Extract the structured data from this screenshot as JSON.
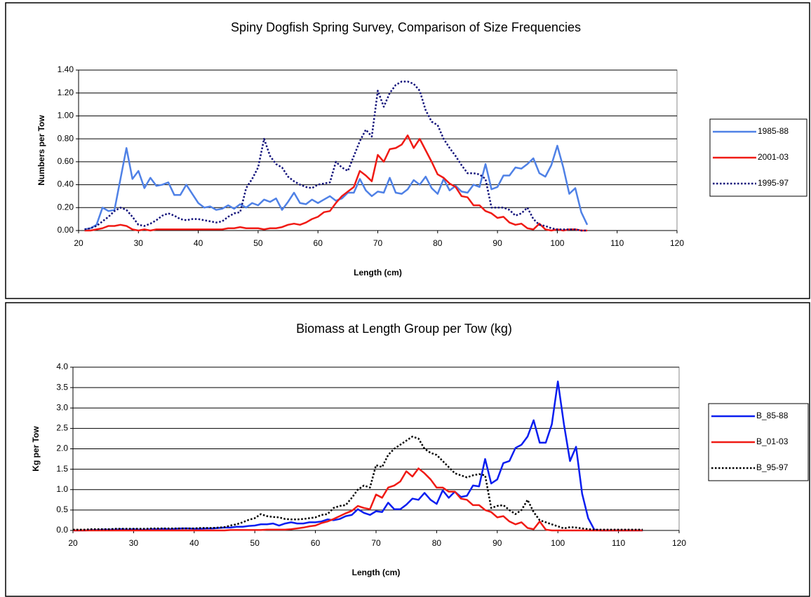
{
  "chart_data": [
    {
      "type": "line",
      "title": "Spiny Dogfish Spring Survey, Comparison of Size Frequencies",
      "xlabel": "Length (cm)",
      "ylabel": "Numbers per Tow",
      "x": [
        21,
        22,
        23,
        24,
        25,
        26,
        27,
        28,
        29,
        30,
        31,
        32,
        33,
        34,
        35,
        36,
        37,
        38,
        39,
        40,
        41,
        42,
        43,
        44,
        45,
        46,
        47,
        48,
        49,
        50,
        51,
        52,
        53,
        54,
        55,
        56,
        57,
        58,
        59,
        60,
        61,
        62,
        63,
        64,
        65,
        66,
        67,
        68,
        69,
        70,
        71,
        72,
        73,
        74,
        75,
        76,
        77,
        78,
        79,
        80,
        81,
        82,
        83,
        84,
        85,
        86,
        87,
        88,
        89,
        90,
        91,
        92,
        93,
        94,
        95,
        96,
        97,
        98,
        99,
        100,
        101,
        102,
        103,
        104,
        105
      ],
      "series": [
        {
          "name": "1985-88",
          "color": "#4f81e6",
          "style": "solid",
          "values": [
            0.01,
            0.02,
            0.05,
            0.2,
            0.17,
            0.18,
            0.45,
            0.72,
            0.45,
            0.52,
            0.37,
            0.46,
            0.39,
            0.4,
            0.42,
            0.31,
            0.31,
            0.4,
            0.32,
            0.24,
            0.2,
            0.21,
            0.18,
            0.19,
            0.22,
            0.19,
            0.23,
            0.2,
            0.24,
            0.22,
            0.27,
            0.25,
            0.28,
            0.18,
            0.25,
            0.33,
            0.24,
            0.23,
            0.27,
            0.24,
            0.27,
            0.3,
            0.26,
            0.28,
            0.33,
            0.33,
            0.45,
            0.35,
            0.3,
            0.34,
            0.33,
            0.46,
            0.33,
            0.32,
            0.36,
            0.44,
            0.4,
            0.47,
            0.37,
            0.32,
            0.45,
            0.35,
            0.39,
            0.34,
            0.33,
            0.4,
            0.38,
            0.58,
            0.36,
            0.38,
            0.48,
            0.48,
            0.55,
            0.54,
            0.58,
            0.63,
            0.5,
            0.47,
            0.57,
            0.74,
            0.55,
            0.32,
            0.37,
            0.16,
            0.05
          ]
        },
        {
          "name": "2001-03",
          "color": "#f01a14",
          "style": "solid",
          "values": [
            0,
            0,
            0.01,
            0.02,
            0.04,
            0.04,
            0.05,
            0.04,
            0.01,
            0,
            0.01,
            0,
            0.01,
            0.01,
            0.01,
            0.01,
            0.01,
            0.01,
            0.01,
            0.01,
            0.01,
            0.01,
            0.01,
            0.01,
            0.02,
            0.02,
            0.03,
            0.02,
            0.02,
            0.02,
            0.01,
            0.02,
            0.02,
            0.03,
            0.05,
            0.06,
            0.05,
            0.07,
            0.1,
            0.12,
            0.16,
            0.17,
            0.24,
            0.3,
            0.34,
            0.38,
            0.52,
            0.48,
            0.43,
            0.66,
            0.6,
            0.71,
            0.72,
            0.75,
            0.83,
            0.72,
            0.8,
            0.7,
            0.6,
            0.49,
            0.46,
            0.41,
            0.38,
            0.3,
            0.29,
            0.22,
            0.22,
            0.17,
            0.15,
            0.11,
            0.12,
            0.07,
            0.05,
            0.06,
            0.02,
            0.01,
            0.06,
            0.01,
            0,
            0.01,
            0,
            0.01,
            0.01,
            0,
            0
          ]
        },
        {
          "name": "1995-97",
          "color": "#10107a",
          "style": "dotted",
          "values": [
            0.01,
            0.02,
            0.04,
            0.08,
            0.12,
            0.17,
            0.2,
            0.18,
            0.12,
            0.05,
            0.04,
            0.06,
            0.09,
            0.13,
            0.15,
            0.13,
            0.1,
            0.09,
            0.1,
            0.1,
            0.09,
            0.08,
            0.07,
            0.08,
            0.12,
            0.15,
            0.16,
            0.37,
            0.45,
            0.55,
            0.8,
            0.65,
            0.58,
            0.55,
            0.47,
            0.43,
            0.4,
            0.38,
            0.37,
            0.4,
            0.41,
            0.42,
            0.6,
            0.55,
            0.52,
            0.65,
            0.78,
            0.88,
            0.82,
            1.22,
            1.08,
            1.2,
            1.27,
            1.3,
            1.3,
            1.28,
            1.22,
            1.05,
            0.95,
            0.92,
            0.8,
            0.72,
            0.65,
            0.57,
            0.5,
            0.5,
            0.49,
            0.45,
            0.2,
            0.2,
            0.2,
            0.18,
            0.13,
            0.15,
            0.2,
            0.1,
            0.05,
            0.04,
            0.02,
            0.01,
            0.01,
            0.01,
            0.01,
            0,
            0
          ]
        }
      ],
      "xlim": [
        20,
        120
      ],
      "xticks": [
        20,
        30,
        40,
        50,
        60,
        70,
        80,
        90,
        100,
        110,
        120
      ],
      "ylim": [
        0,
        1.4
      ],
      "yticks": [
        {
          "value": 0,
          "label": "0.00"
        },
        {
          "value": 0.2,
          "label": "0.20"
        },
        {
          "value": 0.4,
          "label": "0.40"
        },
        {
          "value": 0.6,
          "label": "0.60"
        },
        {
          "value": 0.8,
          "label": "0.80"
        },
        {
          "value": 1,
          "label": "1.00"
        },
        {
          "value": 1.2,
          "label": "1.20"
        },
        {
          "value": 1.4,
          "label": "1.40"
        }
      ],
      "grid": true,
      "legend": "right"
    },
    {
      "type": "line",
      "title": "Biomass at Length Group per Tow (kg)",
      "xlabel": "Length (cm)",
      "ylabel": "Kg per Tow",
      "x": [
        20,
        21,
        22,
        23,
        24,
        25,
        26,
        27,
        28,
        29,
        30,
        31,
        32,
        33,
        34,
        35,
        36,
        37,
        38,
        39,
        40,
        41,
        42,
        43,
        44,
        45,
        46,
        47,
        48,
        49,
        50,
        51,
        52,
        53,
        54,
        55,
        56,
        57,
        58,
        59,
        60,
        61,
        62,
        63,
        64,
        65,
        66,
        67,
        68,
        69,
        70,
        71,
        72,
        73,
        74,
        75,
        76,
        77,
        78,
        79,
        80,
        81,
        82,
        83,
        84,
        85,
        86,
        87,
        88,
        89,
        90,
        91,
        92,
        93,
        94,
        95,
        96,
        97,
        98,
        99,
        100,
        101,
        102,
        103,
        104,
        105,
        106,
        107,
        108,
        109,
        110,
        111,
        112,
        113,
        114
      ],
      "series": [
        {
          "name": "B_85-88",
          "color": "#0a1ef0",
          "style": "solid",
          "values": [
            0,
            0,
            0,
            0.01,
            0.01,
            0.02,
            0.02,
            0.02,
            0.03,
            0.02,
            0.03,
            0.02,
            0.02,
            0.03,
            0.03,
            0.04,
            0.03,
            0.04,
            0.05,
            0.05,
            0.04,
            0.04,
            0.05,
            0.05,
            0.06,
            0.07,
            0.07,
            0.09,
            0.09,
            0.11,
            0.12,
            0.15,
            0.15,
            0.17,
            0.12,
            0.17,
            0.2,
            0.17,
            0.17,
            0.2,
            0.2,
            0.22,
            0.27,
            0.25,
            0.28,
            0.35,
            0.38,
            0.52,
            0.43,
            0.38,
            0.47,
            0.45,
            0.68,
            0.52,
            0.52,
            0.63,
            0.78,
            0.75,
            0.92,
            0.75,
            0.65,
            0.98,
            0.8,
            0.95,
            0.82,
            0.85,
            1.1,
            1.08,
            1.75,
            1.15,
            1.25,
            1.65,
            1.7,
            2.02,
            2.1,
            2.3,
            2.7,
            2.15,
            2.15,
            2.6,
            3.65,
            2.6,
            1.7,
            2.05,
            0.9,
            0.3,
            0.02,
            0,
            0,
            0,
            0,
            0,
            0,
            0,
            0
          ]
        },
        {
          "name": "B_01-03",
          "color": "#f01a14",
          "style": "solid",
          "values": [
            0,
            0,
            0,
            0,
            0,
            0,
            0,
            0,
            0,
            0,
            0,
            0,
            0,
            0,
            0,
            0,
            0,
            0,
            0,
            0,
            0,
            0,
            0,
            0,
            0,
            0,
            0.01,
            0.01,
            0.01,
            0.01,
            0.01,
            0.01,
            0.02,
            0.02,
            0.02,
            0.02,
            0.03,
            0.05,
            0.07,
            0.1,
            0.12,
            0.18,
            0.22,
            0.28,
            0.35,
            0.42,
            0.48,
            0.6,
            0.55,
            0.52,
            0.88,
            0.8,
            1.05,
            1.1,
            1.2,
            1.45,
            1.32,
            1.52,
            1.4,
            1.25,
            1.05,
            1.05,
            0.95,
            0.95,
            0.78,
            0.75,
            0.62,
            0.62,
            0.5,
            0.45,
            0.32,
            0.35,
            0.22,
            0.15,
            0.2,
            0.06,
            0.03,
            0.22,
            0.02,
            0,
            0,
            0,
            0,
            0,
            0,
            0,
            0,
            0,
            0,
            0,
            0,
            0,
            0,
            0,
            0
          ]
        },
        {
          "name": "B_95-97",
          "color": "#000000",
          "style": "dotted",
          "values": [
            0.02,
            0.02,
            0.02,
            0.03,
            0.03,
            0.03,
            0.03,
            0.04,
            0.04,
            0.04,
            0.04,
            0.04,
            0.04,
            0.05,
            0.05,
            0.05,
            0.05,
            0.05,
            0.05,
            0.05,
            0.05,
            0.06,
            0.06,
            0.06,
            0.07,
            0.08,
            0.12,
            0.15,
            0.2,
            0.26,
            0.3,
            0.4,
            0.35,
            0.33,
            0.32,
            0.28,
            0.27,
            0.27,
            0.28,
            0.3,
            0.32,
            0.38,
            0.4,
            0.55,
            0.6,
            0.62,
            0.8,
            1.0,
            1.1,
            1.05,
            1.6,
            1.55,
            1.85,
            2.0,
            2.1,
            2.2,
            2.3,
            2.25,
            2.0,
            1.9,
            1.85,
            1.7,
            1.55,
            1.4,
            1.35,
            1.3,
            1.35,
            1.38,
            1.35,
            0.55,
            0.6,
            0.62,
            0.5,
            0.4,
            0.5,
            0.75,
            0.45,
            0.25,
            0.2,
            0.15,
            0.1,
            0.05,
            0.08,
            0.07,
            0.05,
            0.03,
            0.02,
            0.02,
            0.02,
            0.02,
            0.02,
            0.02,
            0.02,
            0.02,
            0.02
          ]
        }
      ],
      "xlim": [
        20,
        120
      ],
      "xticks": [
        20,
        30,
        40,
        50,
        60,
        70,
        80,
        90,
        100,
        110,
        120
      ],
      "ylim": [
        0,
        4
      ],
      "yticks": [
        {
          "value": 0,
          "label": "0.0"
        },
        {
          "value": 0.5,
          "label": "0.5"
        },
        {
          "value": 1,
          "label": "1.0"
        },
        {
          "value": 1.5,
          "label": "1.5"
        },
        {
          "value": 2,
          "label": "2.0"
        },
        {
          "value": 2.5,
          "label": "2.5"
        },
        {
          "value": 3,
          "label": "3.0"
        },
        {
          "value": 3.5,
          "label": "3.5"
        },
        {
          "value": 4,
          "label": "4.0"
        }
      ],
      "grid": true,
      "legend": "right"
    }
  ]
}
